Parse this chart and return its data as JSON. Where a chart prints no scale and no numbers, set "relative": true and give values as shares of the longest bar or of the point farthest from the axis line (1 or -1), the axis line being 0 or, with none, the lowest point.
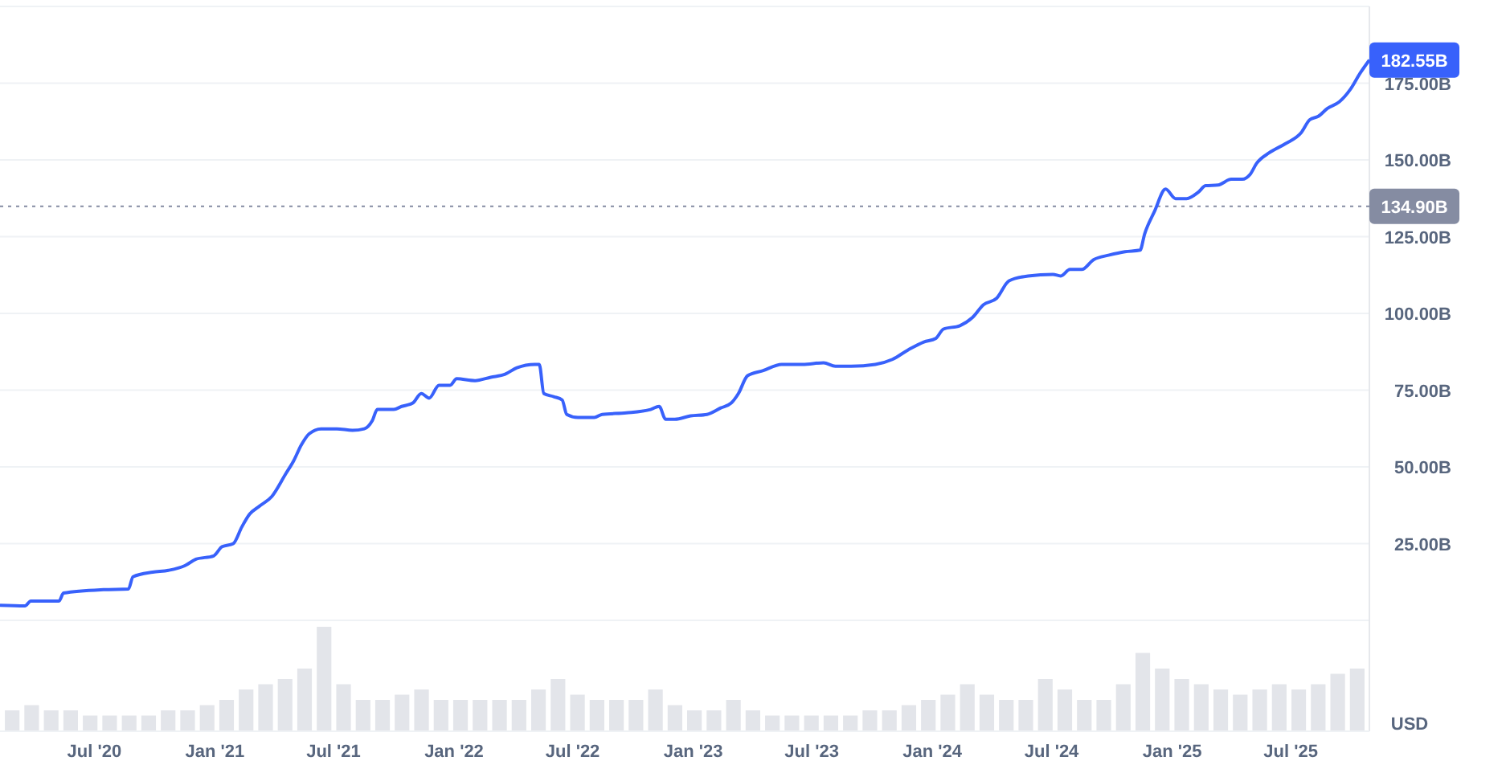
{
  "chart_data": [
    {
      "type": "line",
      "ylabel": "USD",
      "x": [
        "2020-02-08",
        "2020-03-17",
        "2020-03-26",
        "2020-05-08",
        "2020-05-15",
        "2020-07-15",
        "2020-08-22",
        "2020-08-29",
        "2020-09-28",
        "2020-10-22",
        "2020-11-16",
        "2020-12-03",
        "2020-12-30",
        "2021-01-12",
        "2021-01-29",
        "2021-02-11",
        "2021-02-23",
        "2021-03-10",
        "2021-03-29",
        "2021-04-19",
        "2021-05-01",
        "2021-05-13",
        "2021-05-25",
        "2021-06-12",
        "2021-07-06",
        "2021-07-30",
        "2021-08-17",
        "2021-08-29",
        "2021-09-06",
        "2021-10-01",
        "2021-10-13",
        "2021-10-30",
        "2021-11-12",
        "2021-11-24",
        "2021-12-09",
        "2021-12-26",
        "2022-01-05",
        "2022-02-02",
        "2022-02-26",
        "2022-03-20",
        "2022-04-07",
        "2022-05-04",
        "2022-05-11",
        "2022-05-18",
        "2022-06-02",
        "2022-06-15",
        "2022-06-22",
        "2022-07-09",
        "2022-08-03",
        "2022-08-15",
        "2022-09-21",
        "2022-10-28",
        "2022-11-10",
        "2022-11-20",
        "2022-12-04",
        "2022-12-28",
        "2023-01-22",
        "2023-02-12",
        "2023-02-28",
        "2023-03-11",
        "2023-03-25",
        "2023-04-17",
        "2023-05-16",
        "2023-06-17",
        "2023-07-19",
        "2023-08-06",
        "2023-08-30",
        "2023-10-06",
        "2023-11-01",
        "2023-11-25",
        "2023-12-19",
        "2024-01-06",
        "2024-01-18",
        "2024-02-12",
        "2024-03-02",
        "2024-03-19",
        "2024-04-08",
        "2024-04-27",
        "2024-05-26",
        "2024-07-03",
        "2024-07-15",
        "2024-07-29",
        "2024-08-16",
        "2024-09-03",
        "2024-09-27",
        "2024-10-21",
        "2024-11-13",
        "2024-11-20",
        "2024-12-05",
        "2024-12-22",
        "2025-01-06",
        "2025-01-23",
        "2025-02-10",
        "2025-02-21",
        "2025-03-12",
        "2025-04-01",
        "2025-04-18",
        "2025-04-30",
        "2025-05-10",
        "2025-05-29",
        "2025-06-23",
        "2025-07-17",
        "2025-07-30",
        "2025-08-12",
        "2025-08-26",
        "2025-09-13",
        "2025-09-30",
        "2025-10-15",
        "2025-10-29"
      ],
      "series": [
        {
          "color": "#3861fb",
          "values": [
            4.9,
            4.7,
            6.3,
            6.3,
            8.9,
            10,
            10.2,
            14.2,
            15.7,
            16.3,
            17.8,
            19.9,
            21,
            24,
            25,
            30.4,
            34.6,
            37.2,
            40.4,
            47.7,
            51.9,
            57.2,
            60.8,
            62.4,
            62.4,
            61.9,
            62.4,
            65,
            68.7,
            68.7,
            69.7,
            70.8,
            73.9,
            72.4,
            76.6,
            76.6,
            78.7,
            78.1,
            79.2,
            80.2,
            82.3,
            83.4,
            83.4,
            73.9,
            72.9,
            71.8,
            67.1,
            66.1,
            66.1,
            67.1,
            67.6,
            68.7,
            69.7,
            65.5,
            65.5,
            66.6,
            67.1,
            69.2,
            70.8,
            73.9,
            79.7,
            81.3,
            83.4,
            83.4,
            83.9,
            82.8,
            82.8,
            83.4,
            85,
            88.1,
            90.7,
            91.8,
            94.9,
            96,
            98.6,
            102.8,
            104.9,
            110.6,
            112.2,
            112.7,
            112.2,
            114.3,
            114.3,
            117.5,
            119,
            120.1,
            120.6,
            125.9,
            133.2,
            140.5,
            137.4,
            137.4,
            139.5,
            141.6,
            141.8,
            143.7,
            143.7,
            145.3,
            148.9,
            152.3,
            155.3,
            158.9,
            163.1,
            164.2,
            166.8,
            168.9,
            173,
            178.3,
            182.55
          ]
        }
      ],
      "xlim": [
        "2020-02-08",
        "2025-10-29"
      ],
      "xticks": [
        {
          "value": "2020-07-01",
          "label": "Jul '20"
        },
        {
          "value": "2021-01-01",
          "label": "Jan '21"
        },
        {
          "value": "2021-07-01",
          "label": "Jul '21"
        },
        {
          "value": "2022-01-01",
          "label": "Jan '22"
        },
        {
          "value": "2022-07-01",
          "label": "Jul '22"
        },
        {
          "value": "2023-01-01",
          "label": "Jan '23"
        },
        {
          "value": "2023-07-01",
          "label": "Jul '23"
        },
        {
          "value": "2024-01-01",
          "label": "Jan '24"
        },
        {
          "value": "2024-07-01",
          "label": "Jul '24"
        },
        {
          "value": "2025-01-01",
          "label": "Jan '25"
        },
        {
          "value": "2025-07-01",
          "label": "Jul '25"
        }
      ],
      "ylim": [
        0,
        200
      ],
      "yticks": [
        {
          "value": 0,
          "label": null
        },
        {
          "value": 25,
          "label": "25.00B"
        },
        {
          "value": 50,
          "label": "50.00B"
        },
        {
          "value": 75,
          "label": "75.00B"
        },
        {
          "value": 100,
          "label": "100.00B"
        },
        {
          "value": 125,
          "label": "125.00B"
        },
        {
          "value": 150,
          "label": "150.00B"
        },
        {
          "value": 175,
          "label": "175.00B"
        },
        {
          "value": 200,
          "label": null
        }
      ],
      "grid": "y",
      "ref_lines": [
        {
          "axis": "y",
          "value": 134.9,
          "label": "134.90B",
          "color": "#858ca2",
          "line_style": "dotted"
        }
      ],
      "annotations": [
        {
          "text": "182.55B",
          "x": "2025-10-29",
          "y": 182.55
        }
      ]
    },
    {
      "type": "bar",
      "relative": true,
      "color": "#e3e5ea",
      "categories": [
        null,
        null,
        null,
        null,
        null,
        null,
        null,
        null,
        null,
        null,
        null,
        null,
        null,
        null,
        null,
        null,
        null,
        null,
        null,
        null,
        null,
        null,
        null,
        null,
        null,
        null,
        null,
        null,
        null,
        null,
        null,
        null,
        null,
        null,
        null,
        null,
        null,
        null,
        null,
        null,
        null,
        null,
        null,
        null,
        null,
        null,
        null,
        null,
        null,
        null,
        null,
        null,
        null,
        null,
        null,
        null,
        null,
        null,
        null,
        null,
        null,
        null,
        null,
        null,
        null,
        null,
        null,
        null,
        null,
        null
      ],
      "values": [
        0.2,
        0.25,
        0.2,
        0.2,
        0.15,
        0.15,
        0.15,
        0.15,
        0.2,
        0.2,
        0.25,
        0.3,
        0.4,
        0.45,
        0.5,
        0.6,
        1,
        0.45,
        0.3,
        0.3,
        0.35,
        0.4,
        0.3,
        0.3,
        0.3,
        0.3,
        0.3,
        0.4,
        0.5,
        0.35,
        0.3,
        0.3,
        0.3,
        0.4,
        0.25,
        0.2,
        0.2,
        0.3,
        0.2,
        0.15,
        0.15,
        0.15,
        0.15,
        0.15,
        0.2,
        0.2,
        0.25,
        0.3,
        0.35,
        0.45,
        0.35,
        0.3,
        0.3,
        0.5,
        0.4,
        0.3,
        0.3,
        0.45,
        0.75,
        0.6,
        0.5,
        0.45,
        0.4,
        0.35,
        0.4,
        0.45,
        0.4,
        0.45,
        0.55,
        0.6
      ]
    }
  ]
}
